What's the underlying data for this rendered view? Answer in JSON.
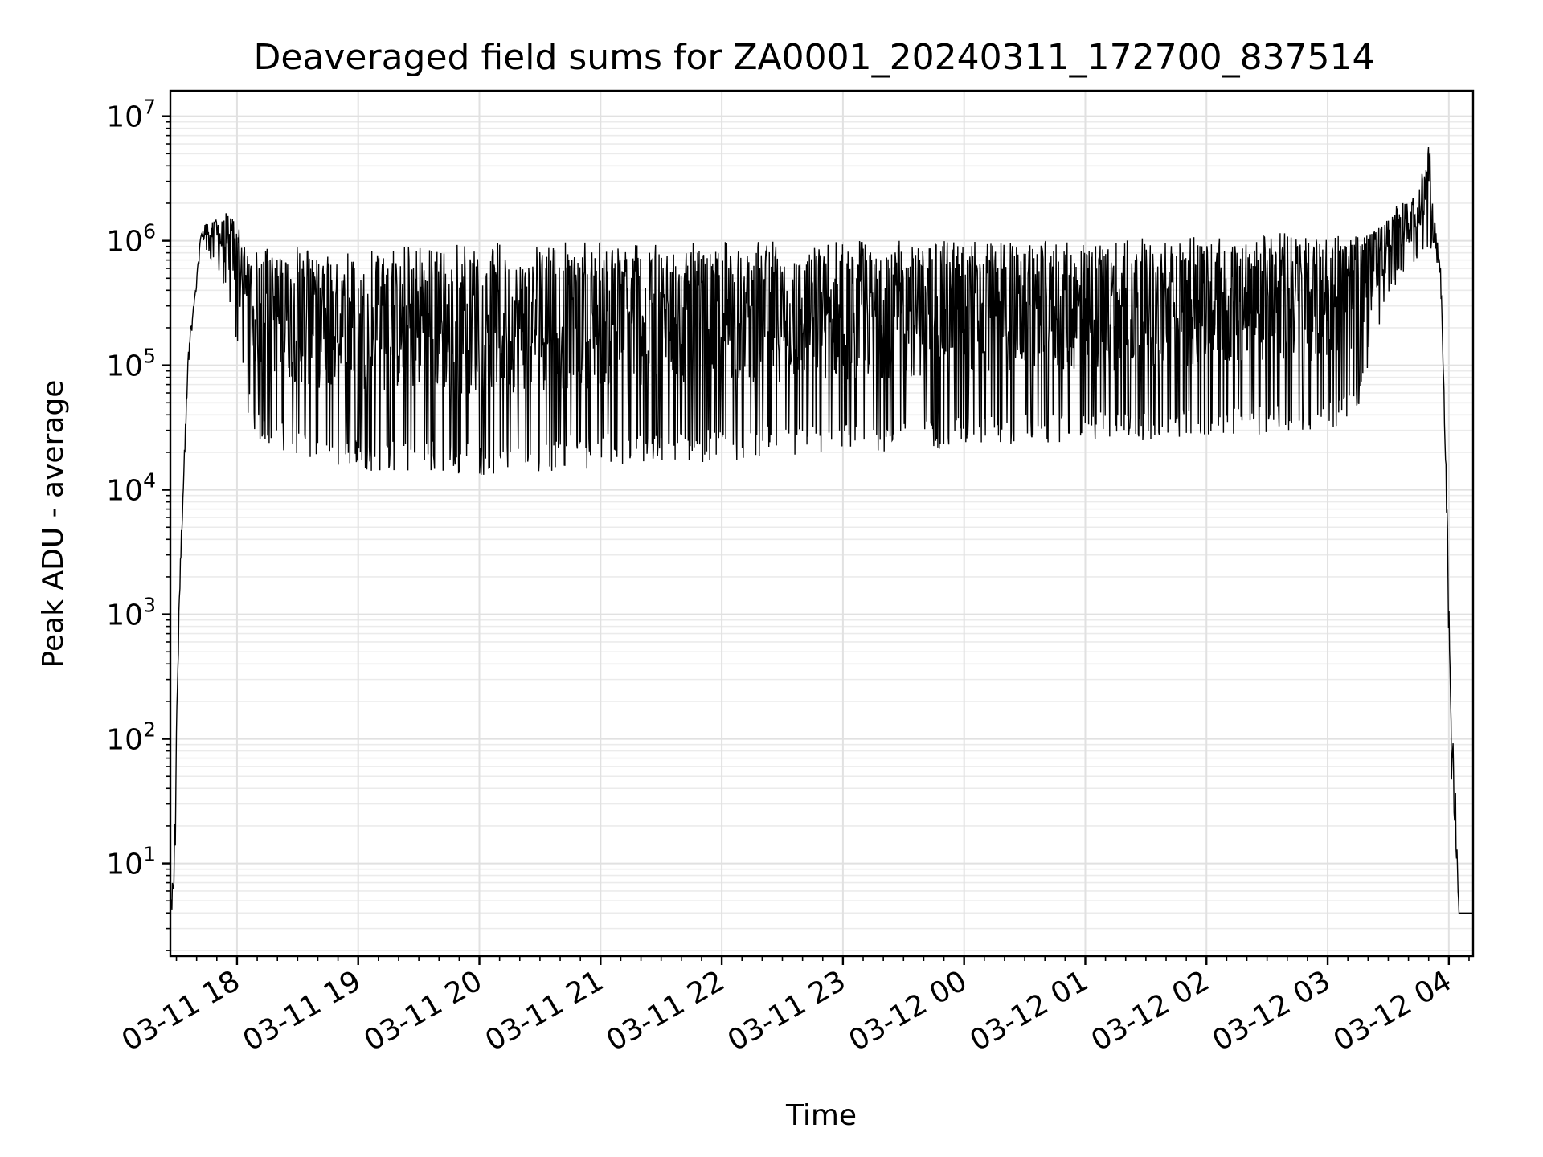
{
  "chart_data": {
    "type": "line",
    "title": "Deaveraged field sums for ZA0001_20240311_172700_837514",
    "xlabel": "Time",
    "ylabel": "Peak ADU - average",
    "yscale": "log",
    "ylim": [
      1.8,
      16000000
    ],
    "xlim": [
      "2024-03-11 17:27",
      "2024-03-12 04:12"
    ],
    "grid": true,
    "line_color": "#000000",
    "xticks": [
      {
        "value": "2024-03-11 18:00",
        "label": "03-11 18"
      },
      {
        "value": "2024-03-11 19:00",
        "label": "03-11 19"
      },
      {
        "value": "2024-03-11 20:00",
        "label": "03-11 20"
      },
      {
        "value": "2024-03-11 21:00",
        "label": "03-11 21"
      },
      {
        "value": "2024-03-11 22:00",
        "label": "03-11 22"
      },
      {
        "value": "2024-03-11 23:00",
        "label": "03-11 23"
      },
      {
        "value": "2024-03-12 00:00",
        "label": "03-12 00"
      },
      {
        "value": "2024-03-12 01:00",
        "label": "03-12 01"
      },
      {
        "value": "2024-03-12 02:00",
        "label": "03-12 02"
      },
      {
        "value": "2024-03-12 03:00",
        "label": "03-12 03"
      },
      {
        "value": "2024-03-12 04:00",
        "label": "03-12 04"
      }
    ],
    "yticks": [
      {
        "value": 10,
        "base": "10",
        "exp": "1"
      },
      {
        "value": 100,
        "base": "10",
        "exp": "2"
      },
      {
        "value": 1000,
        "base": "10",
        "exp": "3"
      },
      {
        "value": 10000,
        "base": "10",
        "exp": "4"
      },
      {
        "value": 100000,
        "base": "10",
        "exp": "5"
      },
      {
        "value": 1000000,
        "base": "10",
        "exp": "6"
      },
      {
        "value": 10000000,
        "base": "10",
        "exp": "7"
      }
    ],
    "series": [
      {
        "x": [
          "2024-03-11 17:27",
          "2024-03-11 17:29",
          "2024-03-11 17:31",
          "2024-03-11 17:33",
          "2024-03-11 17:36",
          "2024-03-11 17:39",
          "2024-03-11 17:42",
          "2024-03-11 17:45",
          "2024-03-11 17:50",
          "2024-03-11 17:55",
          "2024-03-11 18:00",
          "2024-03-11 18:05",
          "2024-03-11 18:10",
          "2024-03-11 18:20",
          "2024-03-11 18:30",
          "2024-03-11 18:45",
          "2024-03-11 19:00",
          "2024-03-11 19:15",
          "2024-03-11 19:30",
          "2024-03-11 19:45",
          "2024-03-11 20:00",
          "2024-03-11 20:30",
          "2024-03-11 21:00",
          "2024-03-11 21:30",
          "2024-03-11 22:00",
          "2024-03-11 22:30",
          "2024-03-11 23:00",
          "2024-03-11 23:30",
          "2024-03-12 00:00",
          "2024-03-12 00:30",
          "2024-03-12 01:00",
          "2024-03-12 01:30",
          "2024-03-12 02:00",
          "2024-03-12 02:30",
          "2024-03-12 03:00",
          "2024-03-12 03:15",
          "2024-03-12 03:25",
          "2024-03-12 03:35",
          "2024-03-12 03:45",
          "2024-03-12 03:50",
          "2024-03-12 03:53",
          "2024-03-12 03:56",
          "2024-03-12 03:59",
          "2024-03-12 04:01",
          "2024-03-12 04:03",
          "2024-03-12 04:05",
          "2024-03-12 04:08",
          "2024-03-12 04:12"
        ],
        "upper": [
          4,
          15,
          1100,
          9000,
          150000,
          350000,
          1100000,
          1500000,
          1500000,
          1700000,
          1400000,
          1100000,
          1000000,
          950000,
          900000,
          850000,
          880000,
          900000,
          900000,
          950000,
          950000,
          980000,
          1000000,
          990000,
          1000000,
          1000000,
          1000000,
          1000000,
          1000000,
          1000000,
          1000000,
          1050000,
          1100000,
          1150000,
          1200000,
          1300000,
          1400000,
          2000000,
          2500000,
          8000000,
          1500000,
          600000,
          10000,
          200,
          60,
          4,
          4,
          4
        ],
        "lower": [
          4,
          4,
          500,
          5000,
          100000,
          300000,
          900000,
          800000,
          600000,
          350000,
          150000,
          40000,
          25000,
          22000,
          18000,
          15000,
          14000,
          14000,
          14000,
          13000,
          13000,
          14000,
          15000,
          16000,
          17000,
          18000,
          19000,
          20000,
          22000,
          23000,
          24000,
          25000,
          26000,
          28000,
          30000,
          40000,
          200000,
          500000,
          700000,
          800000,
          900000,
          400000,
          5000,
          50,
          20,
          4,
          4,
          4
        ]
      }
    ]
  }
}
